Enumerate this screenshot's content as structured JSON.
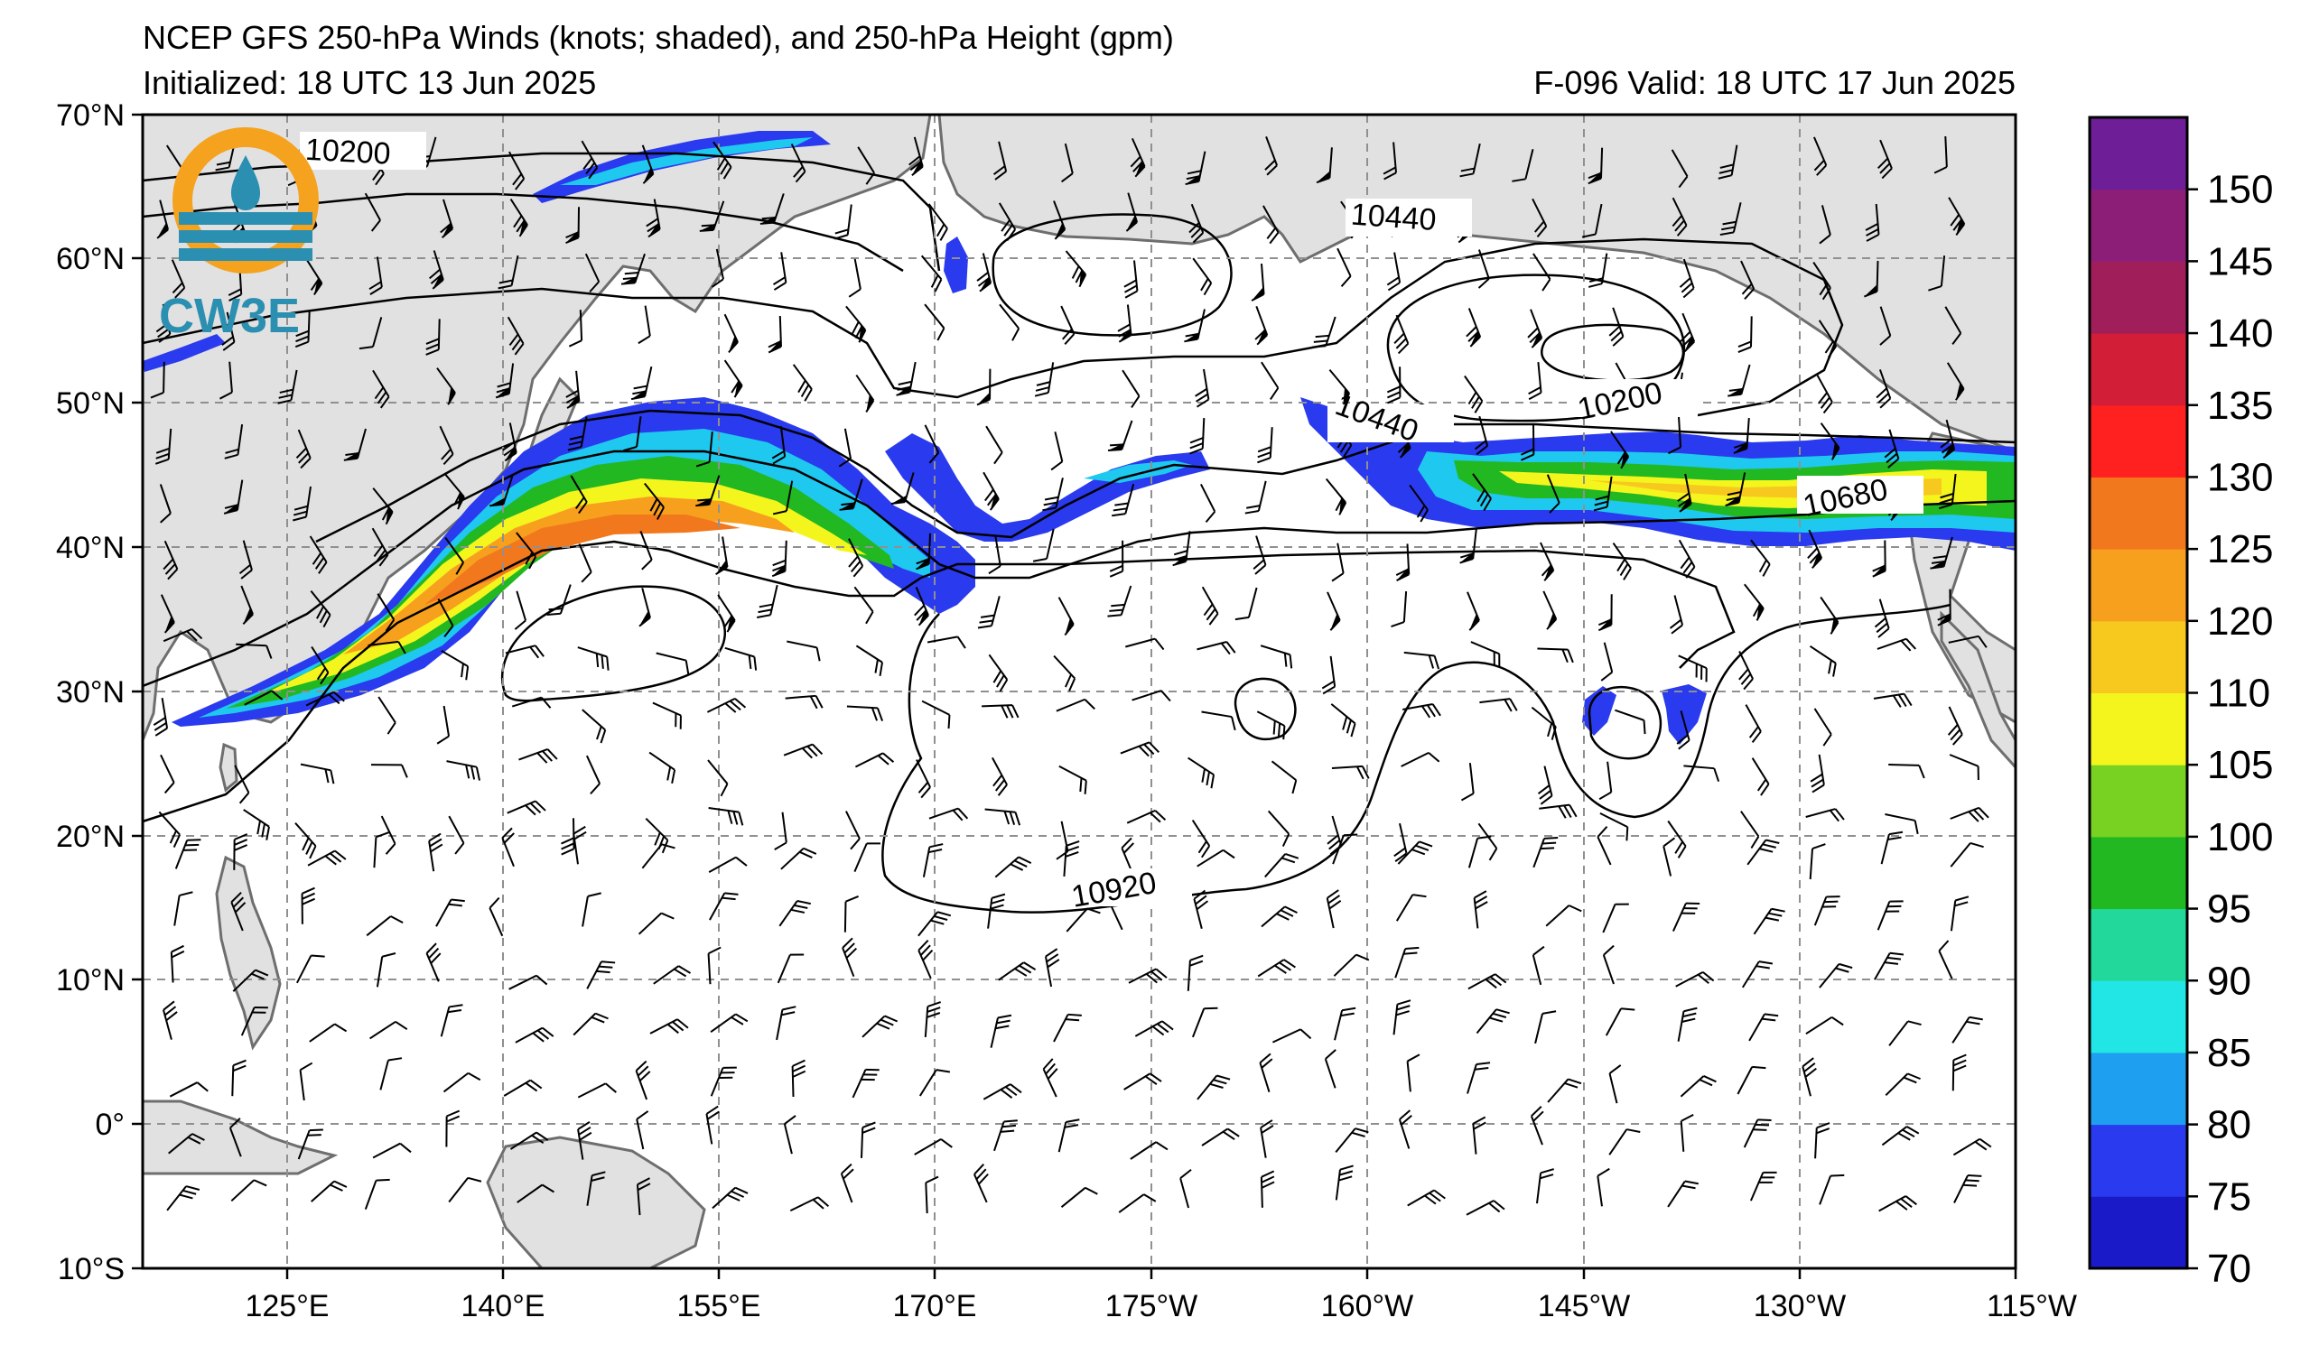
{
  "title": {
    "line1": "NCEP GFS 250-hPa Winds (knots; shaded), and 250-hPa Height (gpm)",
    "initialized": "Initialized: 18 UTC 13 Jun 2025",
    "valid": "F-096  Valid: 18 UTC 17 Jun 2025"
  },
  "logo": {
    "text": "CW3E"
  },
  "axes": {
    "lat_labels": [
      "70°N",
      "60°N",
      "50°N",
      "40°N",
      "30°N",
      "20°N",
      "10°N",
      "0°",
      "10°S"
    ],
    "lon_labels": [
      "125°E",
      "140°E",
      "155°E",
      "170°E",
      "175°W",
      "160°W",
      "145°W",
      "130°W",
      "115°W"
    ]
  },
  "contour_labels": [
    "10200",
    "10440",
    "10440",
    "10200",
    "10680",
    "10920"
  ],
  "colorbar": {
    "ticks": [
      "70",
      "75",
      "80",
      "85",
      "90",
      "95",
      "100",
      "105",
      "110",
      "120",
      "125",
      "130",
      "135",
      "140",
      "145",
      "150"
    ],
    "colors": [
      "#1a1ac8",
      "#2a3aee",
      "#1f9fef",
      "#22e6e6",
      "#22d89b",
      "#22b822",
      "#78d222",
      "#f5f51e",
      "#f7c81e",
      "#f7a01e",
      "#f2781e",
      "#ff2020",
      "#d21e37",
      "#a01e5a",
      "#8c1e78",
      "#6e1e96"
    ]
  },
  "colors": {
    "land": "#e1e1e1",
    "coast": "#6e6e6e",
    "grid": "#909090"
  }
}
